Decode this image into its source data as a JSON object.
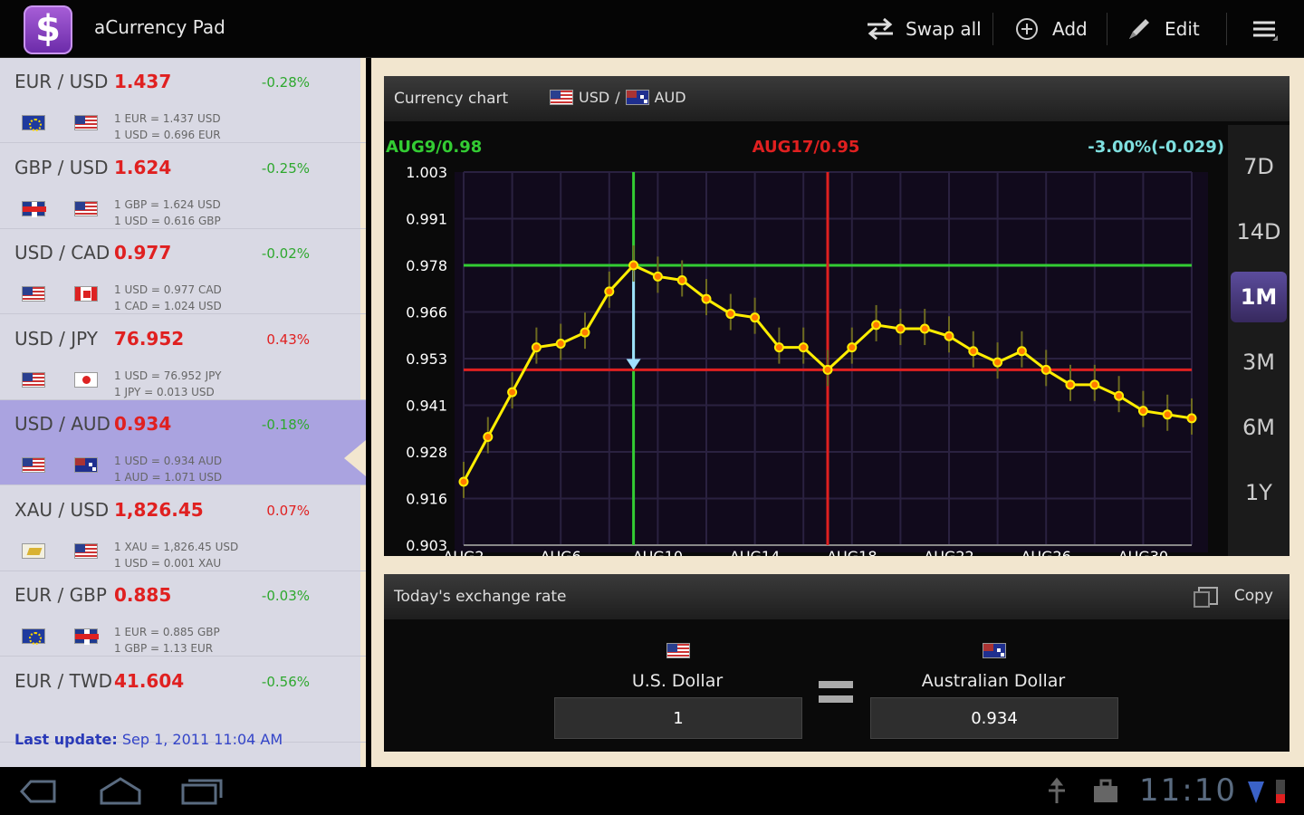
{
  "app": {
    "title": "aCurrency Pad",
    "icon": "dollar-icon"
  },
  "toolbar": {
    "swap_label": "Swap all",
    "add_label": "Add",
    "edit_label": "Edit"
  },
  "pairs": [
    {
      "name": "EUR / USD",
      "rate": "1.437",
      "change": "-0.28%",
      "dir": "neg",
      "line1": "1 EUR = 1.437 USD",
      "line2": "1 USD = 0.696 EUR",
      "flags": [
        "eu",
        "us"
      ]
    },
    {
      "name": "GBP / USD",
      "rate": "1.624",
      "change": "-0.25%",
      "dir": "neg",
      "line1": "1 GBP = 1.624 USD",
      "line2": "1 USD = 0.616 GBP",
      "flags": [
        "gb",
        "us"
      ]
    },
    {
      "name": "USD / CAD",
      "rate": "0.977",
      "change": "-0.02%",
      "dir": "neg",
      "line1": "1 USD = 0.977 CAD",
      "line2": "1 CAD = 1.024 USD",
      "flags": [
        "us",
        "ca"
      ]
    },
    {
      "name": "USD / JPY",
      "rate": "76.952",
      "change": "0.43%",
      "dir": "pos",
      "line1": "1 USD = 76.952 JPY",
      "line2": "1 JPY = 0.013 USD",
      "flags": [
        "us",
        "jp"
      ]
    },
    {
      "name": "USD / AUD",
      "rate": "0.934",
      "change": "-0.18%",
      "dir": "neg",
      "line1": "1 USD = 0.934 AUD",
      "line2": "1 AUD = 1.071 USD",
      "flags": [
        "us",
        "au"
      ],
      "selected": true
    },
    {
      "name": "XAU / USD",
      "rate": "1,826.45",
      "change": "0.07%",
      "dir": "pos",
      "line1": "1 XAU = 1,826.45 USD",
      "line2": "1 USD = 0.001 XAU",
      "flags": [
        "xau",
        "us"
      ]
    },
    {
      "name": "EUR / GBP",
      "rate": "0.885",
      "change": "-0.03%",
      "dir": "neg",
      "line1": "1 EUR = 0.885 GBP",
      "line2": "1 GBP = 1.13 EUR",
      "flags": [
        "eu",
        "gb"
      ]
    },
    {
      "name": "EUR / TWD",
      "rate": "41.604",
      "change": "-0.56%",
      "dir": "neg",
      "line1": "",
      "line2": "",
      "flags": []
    }
  ],
  "last_update": {
    "label": "Last update:",
    "value": "Sep 1, 2011 11:04 AM"
  },
  "chart_panel": {
    "title": "Currency chart",
    "base": "USD",
    "separator": "/",
    "quote": "AUD",
    "marker_left": "AUG9/0.98",
    "marker_right": "AUG17/0.95",
    "change_text": "-3.00%(-0.029)",
    "ranges": [
      "7D",
      "14D",
      "1M",
      "3M",
      "6M",
      "1Y"
    ],
    "active_range": "1M"
  },
  "chart_data": {
    "type": "line",
    "x": [
      "AUG2",
      "AUG3",
      "AUG4",
      "AUG5",
      "AUG6",
      "AUG7",
      "AUG8",
      "AUG9",
      "AUG10",
      "AUG11",
      "AUG12",
      "AUG13",
      "AUG14",
      "AUG15",
      "AUG16",
      "AUG17",
      "AUG18",
      "AUG19",
      "AUG20",
      "AUG21",
      "AUG22",
      "AUG23",
      "AUG24",
      "AUG25",
      "AUG26",
      "AUG27",
      "AUG28",
      "AUG29",
      "AUG30",
      "AUG31",
      "SEP1"
    ],
    "values": [
      0.92,
      0.932,
      0.944,
      0.956,
      0.957,
      0.96,
      0.971,
      0.978,
      0.975,
      0.974,
      0.969,
      0.965,
      0.964,
      0.956,
      0.956,
      0.95,
      0.956,
      0.962,
      0.961,
      0.961,
      0.959,
      0.955,
      0.952,
      0.955,
      0.95,
      0.946,
      0.946,
      0.943,
      0.939,
      0.938,
      0.937
    ],
    "x_ticks": [
      "AUG2",
      "AUG6",
      "AUG10",
      "AUG14",
      "AUG18",
      "AUG22",
      "AUG26",
      "AUG30"
    ],
    "y_ticks": [
      "1.003",
      "0.991",
      "0.978",
      "0.966",
      "0.953",
      "0.941",
      "0.928",
      "0.916",
      "0.903"
    ],
    "ylim": [
      0.903,
      1.003
    ],
    "markers": [
      {
        "date": "AUG9",
        "value": 0.978,
        "color": "#33cc33"
      },
      {
        "date": "AUG17",
        "value": 0.95,
        "color": "#e02020"
      }
    ],
    "line_color": "#ffee00",
    "background": "#110a1c",
    "grid": true
  },
  "exchange": {
    "title": "Today's exchange rate",
    "copy_label": "Copy",
    "from_name": "U.S. Dollar",
    "from_value": "1",
    "to_name": "Australian Dollar",
    "to_value": "0.934"
  },
  "status": {
    "time": "11:10"
  }
}
